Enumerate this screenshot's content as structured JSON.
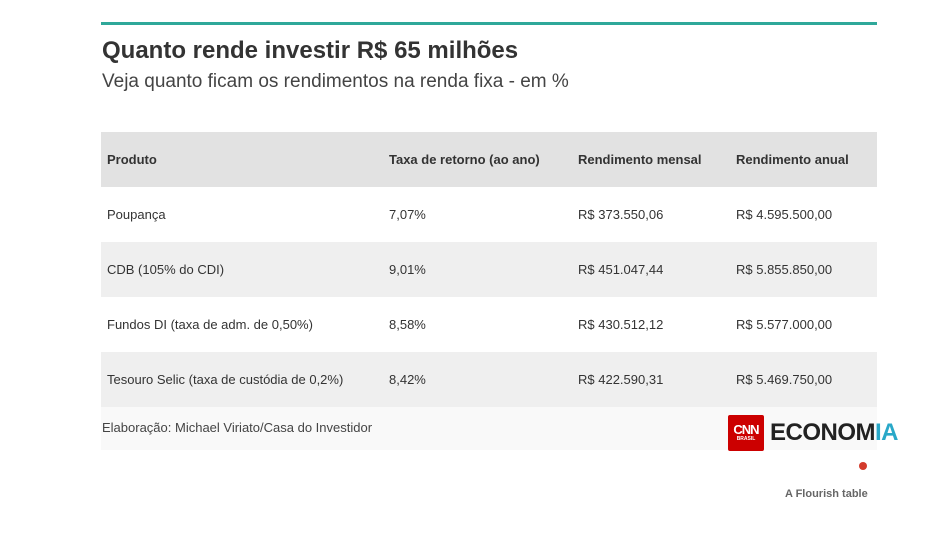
{
  "title": "Quanto rende investir R$ 65 milhões",
  "subtitle": "Veja quanto ficam os rendimentos na renda fixa - em %",
  "chart_data": {
    "type": "table",
    "columns": [
      "Produto",
      "Taxa de retorno (ao ano)",
      "Rendimento mensal",
      "Rendimento anual"
    ],
    "rows": [
      [
        "Poupança",
        "7,07%",
        "R$ 373.550,06",
        "R$ 4.595.500,00"
      ],
      [
        "CDB (105% do CDI)",
        "9,01%",
        "R$ 451.047,44",
        "R$ 5.855.850,00"
      ],
      [
        "Fundos DI (taxa de adm. de 0,50%)",
        "8,58%",
        "R$ 430.512,12",
        "R$ 5.577.000,00"
      ],
      [
        "Tesouro Selic (taxa de custódia de 0,2%)",
        "8,42%",
        "R$ 422.590,31",
        "R$ 5.469.750,00"
      ]
    ]
  },
  "footer": {
    "credit": "Elaboração: Michael Viriato/Casa do Investidor",
    "logo": {
      "cnn": "CNN",
      "cnn_sub": "BRASIL",
      "brand_main": "ECONOM",
      "brand_accent": "IA"
    }
  },
  "flourish_label": "A Flourish table",
  "colors": {
    "accent_line": "#2fa89a",
    "cnn_red": "#cc0000",
    "brand_accent": "#29a8c8",
    "flourish_dot": "#d33b2c"
  }
}
